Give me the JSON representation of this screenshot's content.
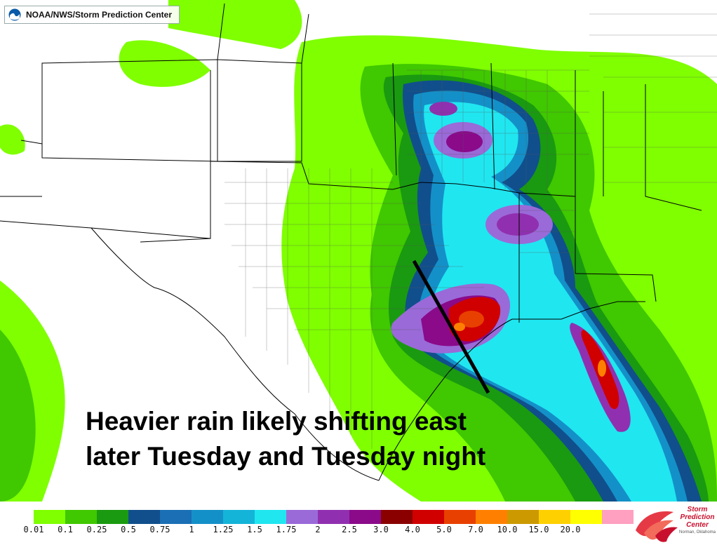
{
  "header": {
    "agency": "NOAA/NWS/Storm Prediction Center"
  },
  "annotation": {
    "line1": "Heavier rain likely shifting east",
    "line2": "later Tuesday and Tuesday night"
  },
  "legend": {
    "items": [
      {
        "label": "0.01",
        "color": "#7fff00"
      },
      {
        "label": "0.1",
        "color": "#40c800"
      },
      {
        "label": "0.25",
        "color": "#1a9a10"
      },
      {
        "label": "0.5",
        "color": "#104f8c"
      },
      {
        "label": "0.75",
        "color": "#1a6fb5"
      },
      {
        "label": "1",
        "color": "#1490c8"
      },
      {
        "label": "1.25",
        "color": "#14b4d8"
      },
      {
        "label": "1.5",
        "color": "#20e6f0"
      },
      {
        "label": "1.75",
        "color": "#9a6ad8"
      },
      {
        "label": "2",
        "color": "#9030b0"
      },
      {
        "label": "2.5",
        "color": "#8a0a8a"
      },
      {
        "label": "3.0",
        "color": "#8a0000"
      },
      {
        "label": "4.0",
        "color": "#d00000"
      },
      {
        "label": "5.0",
        "color": "#e84000"
      },
      {
        "label": "7.0",
        "color": "#ff8000"
      },
      {
        "label": "10.0",
        "color": "#cc9900"
      },
      {
        "label": "15.0",
        "color": "#ffd000"
      },
      {
        "label": "20.0",
        "color": "#ffff00"
      },
      {
        "label": "",
        "color": "#ffa0c0"
      }
    ]
  },
  "logo": {
    "name": "Storm Prediction Center",
    "line1": "Storm",
    "line2": "Prediction",
    "line3": "Center",
    "sub": "Norman, Oklahoma"
  }
}
